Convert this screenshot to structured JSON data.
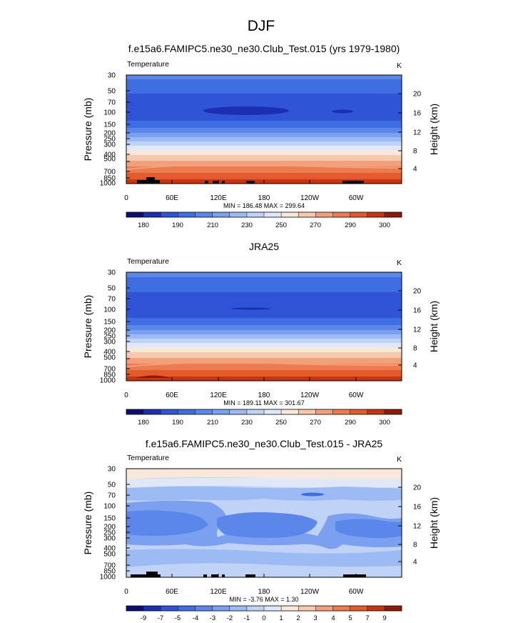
{
  "figure": {
    "title": "DJF"
  },
  "chart_data": [
    {
      "type": "contour",
      "title": "f.e15a6.FAMIPC5.ne30_ne30.Club_Test.015 (yrs 1979-1980)",
      "variable": "Temperature",
      "units": "K",
      "ylabel": "Pressure (mb)",
      "y2label": "Height (km)",
      "x_ticks": [
        "0",
        "60E",
        "120E",
        "180",
        "120W",
        "60W"
      ],
      "p_ticks": [
        "30",
        "50",
        "70",
        "100",
        "150",
        "200",
        "250",
        "300",
        "400",
        "500",
        "700",
        "850",
        "1000"
      ],
      "z_ticks": [
        "20",
        "16",
        "12",
        "8",
        "4"
      ],
      "stats": "MIN = 186.48  MAX = 299.64",
      "min": 186.48,
      "max": 299.64,
      "colorbar_labels": [
        "180",
        "190",
        "210",
        "230",
        "250",
        "270",
        "290",
        "300"
      ],
      "levels": [
        180,
        185,
        190,
        200,
        210,
        220,
        230,
        240,
        250,
        260,
        270,
        280,
        290,
        295,
        300
      ]
    },
    {
      "type": "contour",
      "title": "JRA25",
      "variable": "Temperature",
      "units": "K",
      "ylabel": "Pressure (mb)",
      "y2label": "Height (km)",
      "x_ticks": [
        "0",
        "60E",
        "120E",
        "180",
        "120W",
        "60W"
      ],
      "p_ticks": [
        "30",
        "50",
        "70",
        "100",
        "150",
        "200",
        "250",
        "300",
        "400",
        "500",
        "700",
        "850",
        "1000"
      ],
      "z_ticks": [
        "20",
        "16",
        "12",
        "8",
        "4"
      ],
      "stats": "MIN = 189.11  MAX = 301.67",
      "min": 189.11,
      "max": 301.67,
      "colorbar_labels": [
        "180",
        "190",
        "210",
        "230",
        "250",
        "270",
        "290",
        "300"
      ],
      "levels": [
        180,
        185,
        190,
        200,
        210,
        220,
        230,
        240,
        250,
        260,
        270,
        280,
        290,
        295,
        300
      ]
    },
    {
      "type": "contour",
      "title": "f.e15a6.FAMIPC5.ne30_ne30.Club_Test.015 - JRA25",
      "variable": "Temperature",
      "units": "K",
      "ylabel": "Pressure (mb)",
      "y2label": "Height (km)",
      "x_ticks": [
        "0",
        "60E",
        "120E",
        "180",
        "120W",
        "60W"
      ],
      "p_ticks": [
        "30",
        "50",
        "70",
        "100",
        "150",
        "200",
        "250",
        "300",
        "400",
        "500",
        "700",
        "850",
        "1000"
      ],
      "z_ticks": [
        "20",
        "16",
        "12",
        "8",
        "4"
      ],
      "stats": "MIN = -3.76  MAX =  1.30",
      "min": -3.76,
      "max": 1.3,
      "colorbar_labels": [
        "-9",
        "-7",
        "-5",
        "-4",
        "-3",
        "-2",
        "-1",
        "0",
        "1",
        "2",
        "3",
        "4",
        "5",
        "7",
        "9"
      ],
      "levels": [
        -9,
        -7,
        -5,
        -4,
        -3,
        -2,
        -1,
        0,
        1,
        2,
        3,
        4,
        5,
        7,
        9
      ]
    }
  ],
  "colormap": [
    "#0d0d73",
    "#1c2fb0",
    "#2f54d6",
    "#3f6ee3",
    "#5b87ea",
    "#7aa0ef",
    "#9cbaf3",
    "#c0d3f6",
    "#e0e8f8",
    "#f8e8dc",
    "#f6c8ae",
    "#f2a07b",
    "#ec7b50",
    "#e35a2c",
    "#c63513",
    "#8e1a0a"
  ]
}
